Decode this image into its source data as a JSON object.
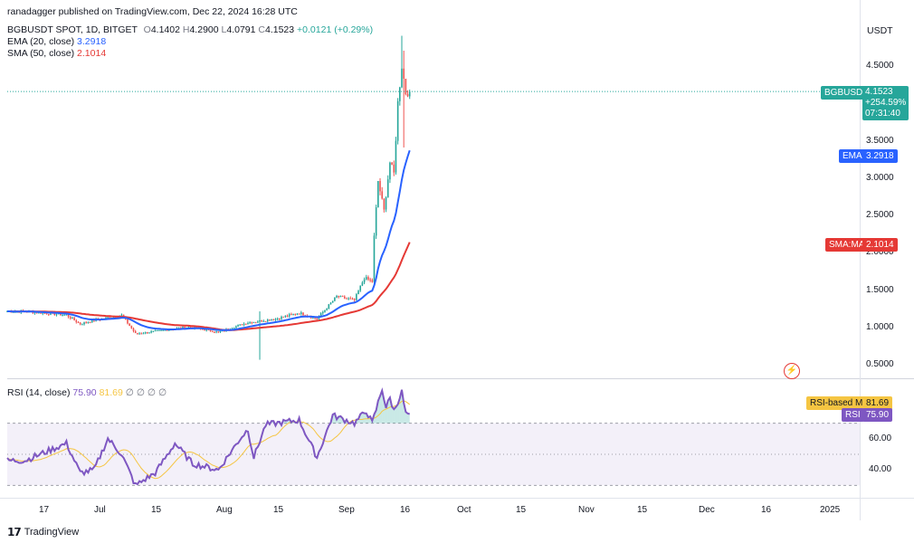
{
  "header": {
    "publisher_line": "ranadagger published on TradingView.com, Dec 22, 2024 16:28 UTC",
    "symbol_line": "BGBUSDT SPOT, 1D, BITGET",
    "ohlc": {
      "o_label": "O",
      "o": "4.1402",
      "h_label": "H",
      "h": "4.2900",
      "l_label": "L",
      "l": "4.0791",
      "c_label": "C",
      "c": "4.1523",
      "change": "+0.0121 (+0.29%)"
    },
    "ema_line": {
      "label": "EMA (20, close)",
      "value": "3.2918"
    },
    "sma_line": {
      "label": "SMA (50, close)",
      "value": "2.1014"
    },
    "rsi_line": {
      "label": "RSI (14, close)",
      "value": "75.90",
      "ma_value": "81.69",
      "extra": "∅ ∅ ∅ ∅"
    }
  },
  "price_axis": {
    "currency": "USDT",
    "ticks": [
      "4.5000",
      "3.5000",
      "3.0000",
      "2.5000",
      "2.0000",
      "1.5000",
      "1.0000",
      "0.5000"
    ]
  },
  "rsi_axis": {
    "ticks": [
      "60.00",
      "40.00"
    ]
  },
  "time_axis": {
    "ticks": [
      "17",
      "Jul",
      "15",
      "Aug",
      "15",
      "Sep",
      "16",
      "Oct",
      "15",
      "Nov",
      "15",
      "Dec",
      "16",
      "2025"
    ]
  },
  "tags": {
    "price": {
      "symbol": "BGBUSDT",
      "value": "4.1523",
      "change": "+254.59%",
      "countdown": "07:31:40"
    },
    "ema": {
      "label": "EMA",
      "value": "3.2918"
    },
    "sma": {
      "label": "SMA:MA",
      "value": "2.1014"
    },
    "rsi_ma": {
      "label": "RSI-based MA",
      "value": "81.69"
    },
    "rsi": {
      "label": "RSI",
      "value": "75.90"
    }
  },
  "footer": {
    "brand": "TradingView"
  },
  "colors": {
    "up": "#26a69a",
    "down": "#ef5350",
    "ema": "#2962ff",
    "sma": "#e53935",
    "rsi": "#7e57c2",
    "rsi_ma": "#f5c542"
  },
  "chart_data": {
    "type": "candlestick",
    "symbol": "BGBUSDT",
    "interval": "1D",
    "exchange": "BITGET",
    "price_range": [
      0.5,
      4.5
    ],
    "rsi_range": [
      40,
      60
    ],
    "rsi_levels": [
      70,
      50,
      30
    ],
    "price_anchors": [
      {
        "date": "2024-06-10",
        "close": 1.2
      },
      {
        "date": "2024-07-01",
        "close": 1.15
      },
      {
        "date": "2024-07-08",
        "close": 1.03
      },
      {
        "date": "2024-07-15",
        "close": 1.08
      },
      {
        "date": "2024-07-29",
        "close": 1.15
      },
      {
        "date": "2024-08-05",
        "close": 0.9
      },
      {
        "date": "2024-08-15",
        "close": 0.93
      },
      {
        "date": "2024-09-01",
        "close": 0.99
      },
      {
        "date": "2024-09-16",
        "close": 0.92
      },
      {
        "date": "2024-10-01",
        "close": 1.05
      },
      {
        "date": "2024-10-15",
        "close": 1.1
      },
      {
        "date": "2024-10-27",
        "close": 1.18
      },
      {
        "date": "2024-11-05",
        "close": 1.1
      },
      {
        "date": "2024-11-15",
        "close": 1.4
      },
      {
        "date": "2024-11-24",
        "close": 1.35
      },
      {
        "date": "2024-11-29",
        "close": 1.65
      },
      {
        "date": "2024-12-03",
        "close": 1.6
      },
      {
        "date": "2024-12-04",
        "close": 2.2
      },
      {
        "date": "2024-12-06",
        "close": 2.95
      },
      {
        "date": "2024-12-09",
        "close": 2.55
      },
      {
        "date": "2024-12-12",
        "close": 3.2
      },
      {
        "date": "2024-12-14",
        "close": 3.05
      },
      {
        "date": "2024-12-16",
        "close": 4.0
      },
      {
        "date": "2024-12-18",
        "close": 4.5
      },
      {
        "date": "2024-12-20",
        "close": 4.14
      },
      {
        "date": "2024-12-22",
        "close": 4.1523
      }
    ],
    "spikes": [
      {
        "date": "2024-10-07",
        "high": 1.2,
        "low": 0.55
      },
      {
        "date": "2024-12-19",
        "high": 4.7,
        "low": 3.4
      },
      {
        "date": "2024-12-18",
        "high": 4.9,
        "low": 4.2
      }
    ],
    "rsi_anchors": [
      {
        "date": "2024-06-10",
        "v": 46
      },
      {
        "date": "2024-07-01",
        "v": 57
      },
      {
        "date": "2024-07-08",
        "v": 38
      },
      {
        "date": "2024-07-15",
        "v": 40
      },
      {
        "date": "2024-07-22",
        "v": 60
      },
      {
        "date": "2024-07-29",
        "v": 50
      },
      {
        "date": "2024-08-05",
        "v": 30
      },
      {
        "date": "2024-08-15",
        "v": 38
      },
      {
        "date": "2024-08-25",
        "v": 57
      },
      {
        "date": "2024-09-03",
        "v": 44
      },
      {
        "date": "2024-09-16",
        "v": 40
      },
      {
        "date": "2024-09-27",
        "v": 60
      },
      {
        "date": "2024-10-01",
        "v": 66
      },
      {
        "date": "2024-10-04",
        "v": 48
      },
      {
        "date": "2024-10-10",
        "v": 69
      },
      {
        "date": "2024-10-27",
        "v": 72
      },
      {
        "date": "2024-11-05",
        "v": 48
      },
      {
        "date": "2024-11-13",
        "v": 75
      },
      {
        "date": "2024-11-24",
        "v": 70
      },
      {
        "date": "2024-11-30",
        "v": 78
      },
      {
        "date": "2024-12-03",
        "v": 70
      },
      {
        "date": "2024-12-08",
        "v": 92
      },
      {
        "date": "2024-12-10",
        "v": 80
      },
      {
        "date": "2024-12-12",
        "v": 86
      },
      {
        "date": "2024-12-14",
        "v": 78
      },
      {
        "date": "2024-12-18",
        "v": 90
      },
      {
        "date": "2024-12-20",
        "v": 76
      },
      {
        "date": "2024-12-22",
        "v": 75.9
      }
    ],
    "ema_last": 3.2918,
    "sma_last": 2.1014,
    "rsi_last": 75.9,
    "rsi_ma_last": 81.69
  }
}
